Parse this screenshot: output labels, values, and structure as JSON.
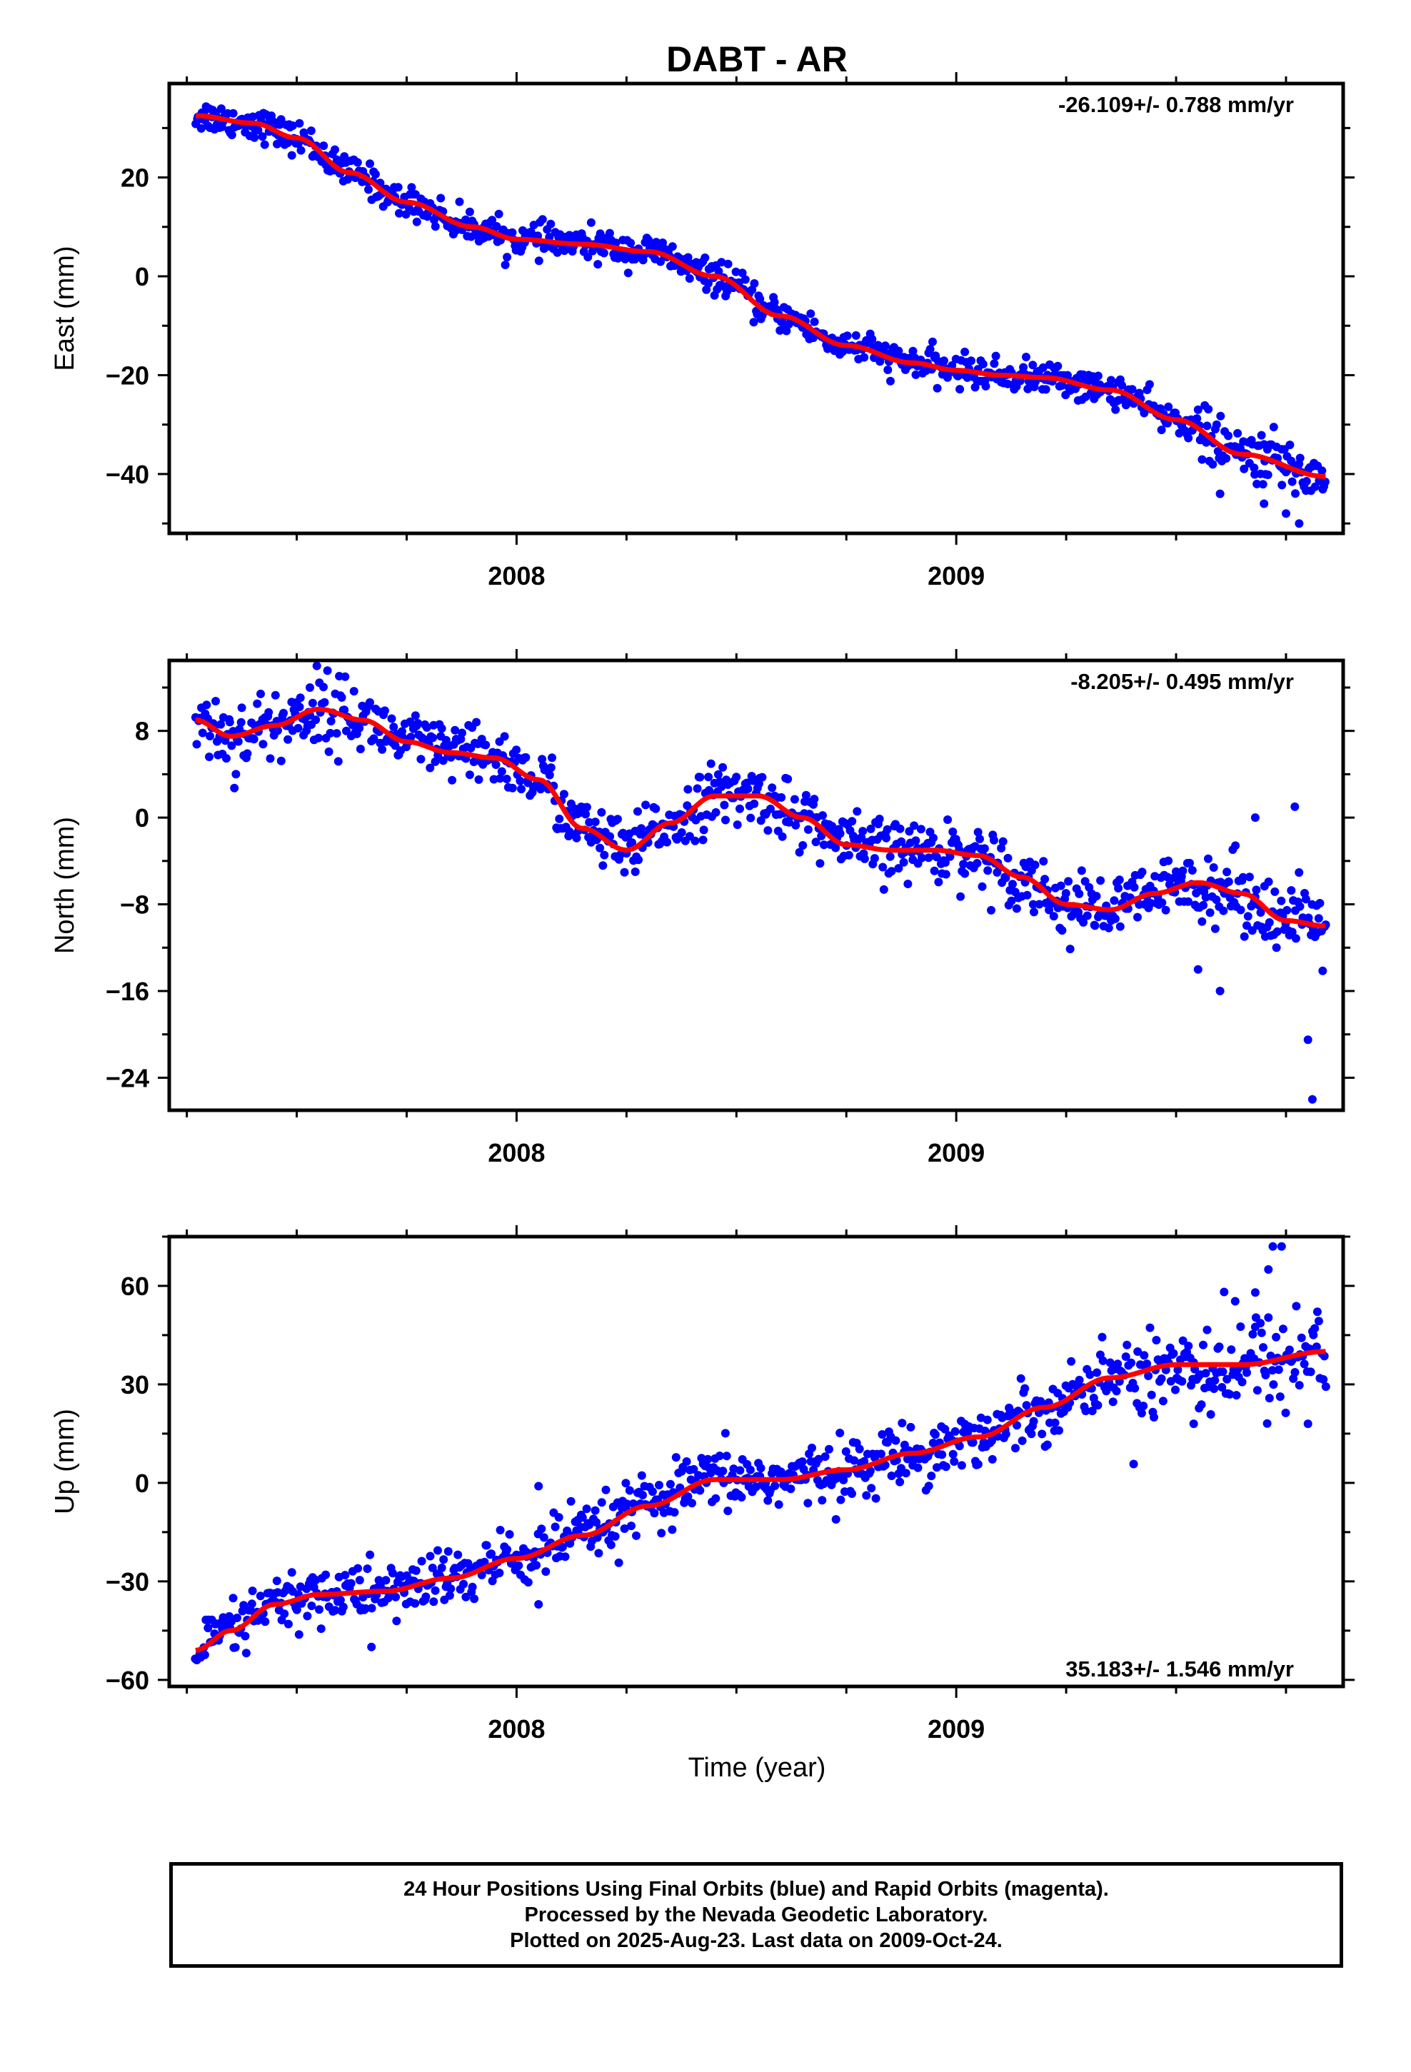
{
  "title": "DABT - AR",
  "xlabel": "Time (year)",
  "footer": {
    "line1": "24 Hour Positions Using Final Orbits (blue) and Rapid Orbits (magenta).",
    "line2": "Processed by the Nevada Geodetic Laboratory.",
    "line3": "Plotted on 2025-Aug-23. Last data on 2009-Oct-24."
  },
  "colors": {
    "data": "#0000ff",
    "fit": "#ff0000",
    "axes": "#000000"
  },
  "chart_data": [
    {
      "type": "scatter",
      "ylabel": "East (mm)",
      "rate": "-26.109+/- 0.788 mm/yr",
      "rate_position": "top-right",
      "xlim": [
        2007.21,
        2009.88
      ],
      "ylim": [
        -52,
        39
      ],
      "yticks": [
        -40,
        -20,
        0,
        20
      ],
      "xticks": [
        2008,
        2009
      ],
      "grid": false,
      "fit": {
        "x": [
          2007.27,
          2007.4,
          2007.5,
          2007.62,
          2007.75,
          2007.9,
          2008.0,
          2008.15,
          2008.3,
          2008.45,
          2008.6,
          2008.75,
          2008.9,
          2009.0,
          2009.1,
          2009.2,
          2009.35,
          2009.5,
          2009.65,
          2009.84
        ],
        "y": [
          32.5,
          31,
          28,
          21,
          15,
          10,
          7.5,
          6.5,
          5,
          0,
          -8,
          -14,
          -17.5,
          -19,
          -20,
          -20.5,
          -23,
          -29,
          -36,
          -40.5
        ]
      },
      "noise": 1.6,
      "outliers": [
        [
          2009.6,
          -44
        ],
        [
          2009.7,
          -46
        ],
        [
          2009.75,
          -48
        ],
        [
          2009.78,
          -50
        ],
        [
          2009.7,
          -34
        ],
        [
          2009.74,
          -35
        ]
      ]
    },
    {
      "type": "scatter",
      "ylabel": "North (mm)",
      "rate": "-8.205+/- 0.495 mm/yr",
      "rate_position": "top-right",
      "xlim": [
        2007.21,
        2009.88
      ],
      "ylim": [
        -27,
        14.5
      ],
      "yticks": [
        -24,
        -16,
        -8,
        0,
        8
      ],
      "xticks": [
        2008,
        2009
      ],
      "grid": false,
      "fit": {
        "x": [
          2007.27,
          2007.35,
          2007.45,
          2007.55,
          2007.65,
          2007.75,
          2007.85,
          2007.95,
          2008.05,
          2008.15,
          2008.25,
          2008.35,
          2008.45,
          2008.55,
          2008.65,
          2008.75,
          2008.85,
          2008.95,
          2009.05,
          2009.15,
          2009.25,
          2009.35,
          2009.45,
          2009.55,
          2009.65,
          2009.75,
          2009.84
        ],
        "y": [
          9,
          7.5,
          8.5,
          10,
          9,
          7,
          6,
          5.5,
          3.5,
          -1,
          -3,
          -0.5,
          2,
          2,
          0,
          -2.5,
          -3,
          -3,
          -3.5,
          -5.5,
          -8,
          -8.5,
          -7,
          -6,
          -7,
          -9.5,
          -10
        ]
      },
      "noise": 1.4,
      "outliers": [
        [
          2007.61,
          13
        ],
        [
          2007.53,
          12
        ],
        [
          2008.27,
          -5
        ],
        [
          2009.55,
          -14
        ],
        [
          2009.6,
          -16
        ],
        [
          2009.68,
          0
        ],
        [
          2009.8,
          -20.5
        ],
        [
          2009.81,
          -26
        ],
        [
          2009.77,
          1
        ]
      ]
    },
    {
      "type": "scatter",
      "ylabel": "Up (mm)",
      "rate": "35.183+/- 1.546 mm/yr",
      "rate_position": "bottom-right",
      "xlim": [
        2007.21,
        2009.88
      ],
      "ylim": [
        -62,
        75
      ],
      "yticks": [
        -60,
        -30,
        0,
        30,
        60
      ],
      "xticks": [
        2008,
        2009
      ],
      "grid": false,
      "fit": {
        "x": [
          2007.27,
          2007.35,
          2007.45,
          2007.55,
          2007.7,
          2007.85,
          2008.0,
          2008.15,
          2008.3,
          2008.45,
          2008.6,
          2008.75,
          2008.9,
          2009.05,
          2009.2,
          2009.35,
          2009.5,
          2009.65,
          2009.84
        ],
        "y": [
          -51,
          -45,
          -37,
          -34,
          -33,
          -29,
          -23,
          -16,
          -7,
          1,
          1,
          4,
          9,
          14,
          23,
          32,
          36,
          36,
          40
        ]
      },
      "noise": 4.5,
      "outliers": [
        [
          2009.72,
          72
        ],
        [
          2009.74,
          72
        ],
        [
          2009.71,
          65
        ],
        [
          2009.68,
          58
        ],
        [
          2009.54,
          18
        ],
        [
          2009.8,
          18
        ],
        [
          2008.05,
          -37
        ],
        [
          2008.05,
          -1
        ],
        [
          2007.67,
          -50
        ]
      ]
    }
  ]
}
